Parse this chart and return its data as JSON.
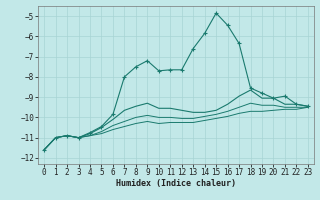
{
  "xlabel": "Humidex (Indice chaleur)",
  "bg_color": "#c2e8e8",
  "grid_color": "#a8d4d4",
  "line_color": "#1a7a6e",
  "xlim": [
    -0.5,
    23.5
  ],
  "ylim": [
    -12.3,
    -4.5
  ],
  "yticks": [
    -12,
    -11,
    -10,
    -9,
    -8,
    -7,
    -6,
    -5
  ],
  "xticks": [
    0,
    1,
    2,
    3,
    4,
    5,
    6,
    7,
    8,
    9,
    10,
    11,
    12,
    13,
    14,
    15,
    16,
    17,
    18,
    19,
    20,
    21,
    22,
    23
  ],
  "line1_x": [
    0,
    1,
    2,
    3,
    4,
    5,
    6,
    7,
    8,
    9,
    10,
    11,
    12,
    13,
    14,
    15,
    16,
    17,
    18,
    19,
    20,
    21,
    22,
    23
  ],
  "line1_y": [
    -11.6,
    -11.0,
    -10.9,
    -11.0,
    -10.75,
    -10.45,
    -9.85,
    -8.0,
    -7.5,
    -7.2,
    -7.7,
    -7.65,
    -7.65,
    -6.6,
    -5.85,
    -4.85,
    -5.45,
    -6.35,
    -8.55,
    -8.8,
    -9.05,
    -8.95,
    -9.35,
    -9.45
  ],
  "line2_x": [
    0,
    1,
    2,
    3,
    4,
    5,
    6,
    7,
    8,
    9,
    10,
    11,
    12,
    13,
    14,
    15,
    16,
    17,
    18,
    19,
    20,
    21,
    22,
    23
  ],
  "line2_y": [
    -11.6,
    -11.0,
    -10.9,
    -11.0,
    -10.8,
    -10.5,
    -10.1,
    -9.65,
    -9.45,
    -9.3,
    -9.55,
    -9.55,
    -9.65,
    -9.75,
    -9.75,
    -9.65,
    -9.35,
    -8.95,
    -8.65,
    -9.05,
    -9.05,
    -9.35,
    -9.35,
    -9.45
  ],
  "line3_x": [
    0,
    1,
    2,
    3,
    4,
    5,
    6,
    7,
    8,
    9,
    10,
    11,
    12,
    13,
    14,
    15,
    16,
    17,
    18,
    19,
    20,
    21,
    22,
    23
  ],
  "line3_y": [
    -11.6,
    -11.0,
    -10.9,
    -11.0,
    -10.9,
    -10.7,
    -10.4,
    -10.2,
    -10.0,
    -9.9,
    -10.0,
    -10.0,
    -10.05,
    -10.05,
    -9.95,
    -9.85,
    -9.7,
    -9.5,
    -9.3,
    -9.4,
    -9.4,
    -9.5,
    -9.5,
    -9.5
  ],
  "line4_x": [
    0,
    1,
    2,
    3,
    4,
    5,
    6,
    7,
    8,
    9,
    10,
    11,
    12,
    13,
    14,
    15,
    16,
    17,
    18,
    19,
    20,
    21,
    22,
    23
  ],
  "line4_y": [
    -11.6,
    -11.0,
    -10.9,
    -11.0,
    -10.9,
    -10.8,
    -10.6,
    -10.45,
    -10.3,
    -10.2,
    -10.3,
    -10.25,
    -10.25,
    -10.25,
    -10.15,
    -10.05,
    -9.95,
    -9.8,
    -9.7,
    -9.7,
    -9.65,
    -9.6,
    -9.6,
    -9.5
  ]
}
